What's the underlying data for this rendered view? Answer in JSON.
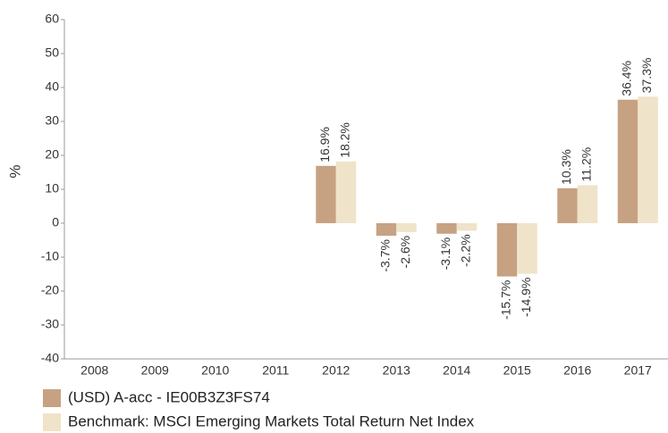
{
  "chart_data": {
    "type": "bar",
    "y_label": "%",
    "categories": [
      "2008",
      "2009",
      "2010",
      "2011",
      "2012",
      "2013",
      "2014",
      "2015",
      "2016",
      "2017"
    ],
    "series": [
      {
        "name": "(USD) A-acc - IE00B3Z3FS74",
        "color": "#c6a282",
        "values": [
          null,
          null,
          null,
          null,
          16.9,
          -3.7,
          -3.1,
          -15.7,
          10.3,
          36.4
        ],
        "value_labels": [
          null,
          null,
          null,
          null,
          "16.9%",
          "-3.7%",
          "-3.1%",
          "-15.7%",
          "10.3%",
          "36.4%"
        ]
      },
      {
        "name": "Benchmark: MSCI Emerging Markets Total Return Net Index",
        "color": "#efe3c9",
        "values": [
          null,
          null,
          null,
          null,
          18.2,
          -2.6,
          -2.2,
          -14.9,
          11.2,
          37.3
        ],
        "value_labels": [
          null,
          null,
          null,
          null,
          "18.2%",
          "-2.6%",
          "-2.2%",
          "-14.9%",
          "11.2%",
          "37.3%"
        ]
      }
    ],
    "ylim": [
      -40,
      60
    ],
    "yticks": [
      -40,
      -30,
      -20,
      -10,
      0,
      10,
      20,
      30,
      40,
      50,
      60
    ],
    "grid": false
  }
}
